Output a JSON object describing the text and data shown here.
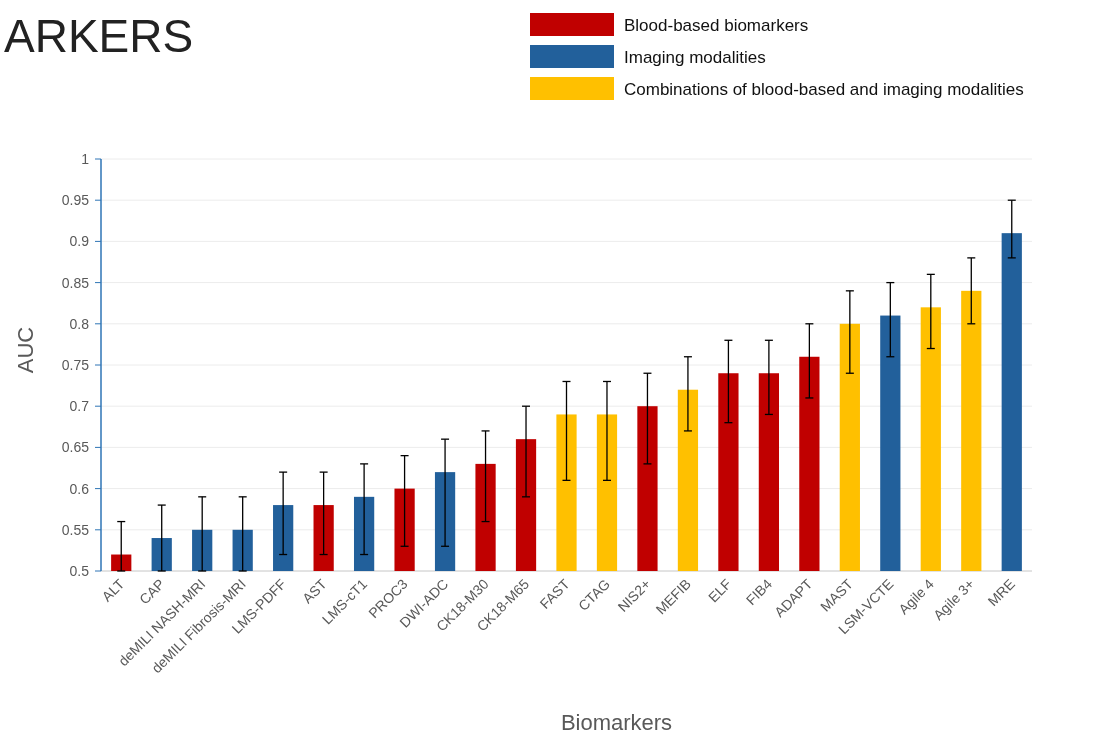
{
  "chart_data": {
    "type": "bar",
    "title": "ARKERS",
    "xlabel": "Biomarkers",
    "ylabel": "AUC",
    "categories": [
      "ALT",
      "CAP",
      "deMILI NASH-MRI",
      "deMILI Fibrosis-MRI",
      "LMS-PDFF",
      "AST",
      "LMS-cT1",
      "PROC3",
      "DWI-ADC",
      "CK18-M30",
      "CK18-M65",
      "FAST",
      "CTAG",
      "NIS2+",
      "MEFIB",
      "ELF",
      "FIB4",
      "ADAPT",
      "MAST",
      "LSM-VCTE",
      "Agile 4",
      "Agile 3+",
      "MRE"
    ],
    "series": [
      {
        "name": "Blood-based biomarkers",
        "color": "#c00000",
        "values": [
          0.52,
          null,
          null,
          null,
          null,
          0.58,
          null,
          0.6,
          null,
          0.63,
          0.66,
          null,
          null,
          0.7,
          null,
          0.74,
          0.74,
          0.76,
          null,
          null,
          null,
          null,
          null
        ],
        "errors": [
          [
            0.5,
            0.56
          ],
          null,
          null,
          null,
          null,
          [
            0.52,
            0.62
          ],
          null,
          [
            0.53,
            0.64
          ],
          null,
          [
            0.56,
            0.67
          ],
          [
            0.59,
            0.7
          ],
          null,
          null,
          [
            0.63,
            0.74
          ],
          null,
          [
            0.68,
            0.78
          ],
          [
            0.69,
            0.78
          ],
          [
            0.71,
            0.8
          ],
          null,
          null,
          null,
          null,
          null
        ]
      },
      {
        "name": "Imaging modalities",
        "color": "#22609b",
        "values": [
          null,
          0.54,
          0.55,
          0.55,
          0.58,
          null,
          0.59,
          null,
          0.62,
          null,
          null,
          null,
          null,
          null,
          null,
          null,
          null,
          null,
          null,
          0.81,
          null,
          null,
          0.91
        ],
        "errors": [
          null,
          [
            0.5,
            0.58
          ],
          [
            0.5,
            0.59
          ],
          [
            0.5,
            0.59
          ],
          [
            0.52,
            0.62
          ],
          null,
          [
            0.52,
            0.63
          ],
          null,
          [
            0.53,
            0.66
          ],
          null,
          null,
          null,
          null,
          null,
          null,
          null,
          null,
          null,
          null,
          [
            0.76,
            0.85
          ],
          null,
          null,
          [
            0.88,
            0.95
          ]
        ]
      },
      {
        "name": "Combinations of blood-based and imaging modalities",
        "color": "#ffc000",
        "values": [
          null,
          null,
          null,
          null,
          null,
          null,
          null,
          null,
          null,
          null,
          null,
          0.69,
          0.69,
          null,
          0.72,
          null,
          null,
          null,
          0.8,
          null,
          0.82,
          0.84,
          null
        ],
        "errors": [
          null,
          null,
          null,
          null,
          null,
          null,
          null,
          null,
          null,
          null,
          null,
          [
            0.61,
            0.73
          ],
          [
            0.61,
            0.73
          ],
          null,
          [
            0.67,
            0.76
          ],
          null,
          null,
          null,
          [
            0.74,
            0.84
          ],
          null,
          [
            0.77,
            0.86
          ],
          [
            0.8,
            0.88
          ],
          null
        ]
      }
    ],
    "ylim": [
      0.5,
      1
    ],
    "yticks": [
      0.5,
      0.55,
      0.6,
      0.65,
      0.7,
      0.75,
      0.8,
      0.85,
      0.9,
      0.95,
      1
    ],
    "grid": "y",
    "legend": "top right"
  }
}
